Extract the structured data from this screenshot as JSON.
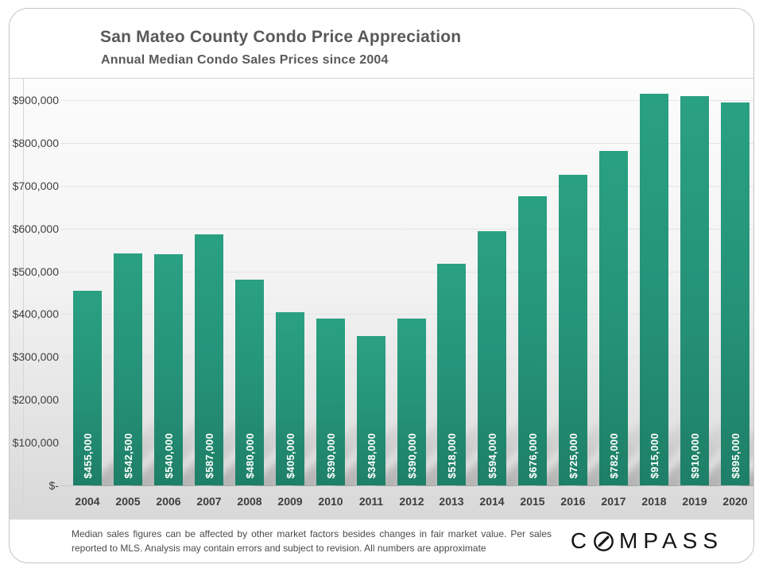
{
  "header": {
    "title": "San Mateo County Condo Price Appreciation",
    "subtitle": "Annual Median Condo Sales Prices since 2004"
  },
  "chart_data": {
    "type": "bar",
    "title": "San Mateo County Condo Price Appreciation",
    "subtitle": "Annual Median Condo Sales Prices since 2004",
    "categories": [
      "2004",
      "2005",
      "2006",
      "2007",
      "2008",
      "2009",
      "2010",
      "2011",
      "2012",
      "2013",
      "2014",
      "2015",
      "2016",
      "2017",
      "2018",
      "2019",
      "2020"
    ],
    "values": [
      455000,
      542500,
      540000,
      587000,
      480000,
      405000,
      390000,
      348000,
      390000,
      518000,
      594000,
      676000,
      725000,
      782000,
      915000,
      910000,
      895000
    ],
    "bar_labels": [
      "$455,000",
      "$542,500",
      "$540,000",
      "$587,000",
      "$480,000",
      "$405,000",
      "$390,000",
      "$348,000",
      "$390,000",
      "$518,000",
      "$594,000",
      "$676,000",
      "$725,000",
      "$782,000",
      "$915,000",
      "$910,000",
      "$895,000"
    ],
    "ytick_labels": [
      "$-",
      "$100,000",
      "$200,000",
      "$300,000",
      "$400,000",
      "$500,000",
      "$600,000",
      "$700,000",
      "$800,000",
      "$900,000"
    ],
    "ylim": [
      0,
      900000
    ],
    "ytick_step": 100000,
    "xlabel": "",
    "ylabel": "",
    "grid": true,
    "legend": "none",
    "bar_color_top": "#2aa082",
    "bar_color_bottom": "#1e7f67",
    "label_color": "#ffffff",
    "axis_text_color": "#3d3d3d"
  },
  "footer": {
    "disclaimer": "Median sales figures can be affected by other market factors besides changes in fair market value. Per sales reported to MLS. Analysis may contain errors and subject to revision. All numbers are approximate",
    "logo_first_letter": "C",
    "logo_rest": "MPASS",
    "logo_color": "#141414"
  }
}
